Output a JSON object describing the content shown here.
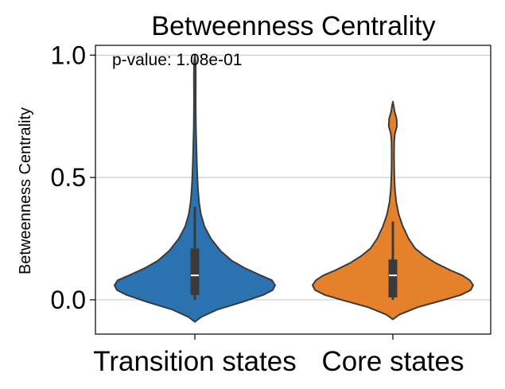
{
  "chart_data": {
    "type": "violin",
    "title": "Betweenness Centrality",
    "ylabel": "Betweenness Centrality",
    "xlabel": "",
    "ylim": [
      -0.14,
      1.04
    ],
    "yticks": [
      0.0,
      0.5,
      1.0
    ],
    "ytick_labels": [
      "0.0",
      "0.5",
      "1.0"
    ],
    "grid": "horizontal",
    "annotation": "p-value: 1.08e-01",
    "categories": [
      "Transition states",
      "Core states"
    ],
    "colors": [
      "#2b73b0",
      "#e5812b"
    ],
    "series": [
      {
        "category": "Transition states",
        "min": 0.0,
        "q1": 0.02,
        "median": 0.1,
        "q3": 0.21,
        "max": 0.38,
        "density": [
          [
            -0.09,
            0.0
          ],
          [
            -0.07,
            0.08
          ],
          [
            -0.04,
            0.28
          ],
          [
            -0.01,
            0.58
          ],
          [
            0.02,
            0.85
          ],
          [
            0.04,
            0.97
          ],
          [
            0.06,
            1.0
          ],
          [
            0.08,
            0.96
          ],
          [
            0.1,
            0.82
          ],
          [
            0.13,
            0.62
          ],
          [
            0.16,
            0.46
          ],
          [
            0.2,
            0.32
          ],
          [
            0.25,
            0.2
          ],
          [
            0.3,
            0.12
          ],
          [
            0.35,
            0.075
          ],
          [
            0.4,
            0.052
          ],
          [
            0.45,
            0.04
          ],
          [
            0.5,
            0.032
          ],
          [
            0.55,
            0.026
          ],
          [
            0.6,
            0.022
          ],
          [
            0.65,
            0.018
          ],
          [
            0.7,
            0.014
          ],
          [
            0.75,
            0.012
          ],
          [
            0.8,
            0.011
          ],
          [
            0.85,
            0.011
          ],
          [
            0.9,
            0.012
          ],
          [
            0.95,
            0.011
          ],
          [
            0.98,
            0.007
          ],
          [
            1.0,
            0.0
          ]
        ]
      },
      {
        "category": "Core states",
        "min": 0.0,
        "q1": 0.01,
        "median": 0.1,
        "q3": 0.165,
        "max": 0.32,
        "density": [
          [
            -0.08,
            0.0
          ],
          [
            -0.06,
            0.08
          ],
          [
            -0.03,
            0.3
          ],
          [
            0.0,
            0.62
          ],
          [
            0.02,
            0.82
          ],
          [
            0.04,
            0.94
          ],
          [
            0.06,
            0.97
          ],
          [
            0.08,
            0.93
          ],
          [
            0.1,
            0.84
          ],
          [
            0.12,
            0.7
          ],
          [
            0.15,
            0.52
          ],
          [
            0.18,
            0.38
          ],
          [
            0.21,
            0.27
          ],
          [
            0.25,
            0.19
          ],
          [
            0.3,
            0.12
          ],
          [
            0.35,
            0.07
          ],
          [
            0.4,
            0.04
          ],
          [
            0.45,
            0.025
          ],
          [
            0.5,
            0.018
          ],
          [
            0.55,
            0.015
          ],
          [
            0.6,
            0.014
          ],
          [
            0.65,
            0.016
          ],
          [
            0.68,
            0.025
          ],
          [
            0.71,
            0.05
          ],
          [
            0.74,
            0.045
          ],
          [
            0.77,
            0.02
          ],
          [
            0.79,
            0.012
          ],
          [
            0.81,
            0.0
          ]
        ]
      }
    ]
  }
}
